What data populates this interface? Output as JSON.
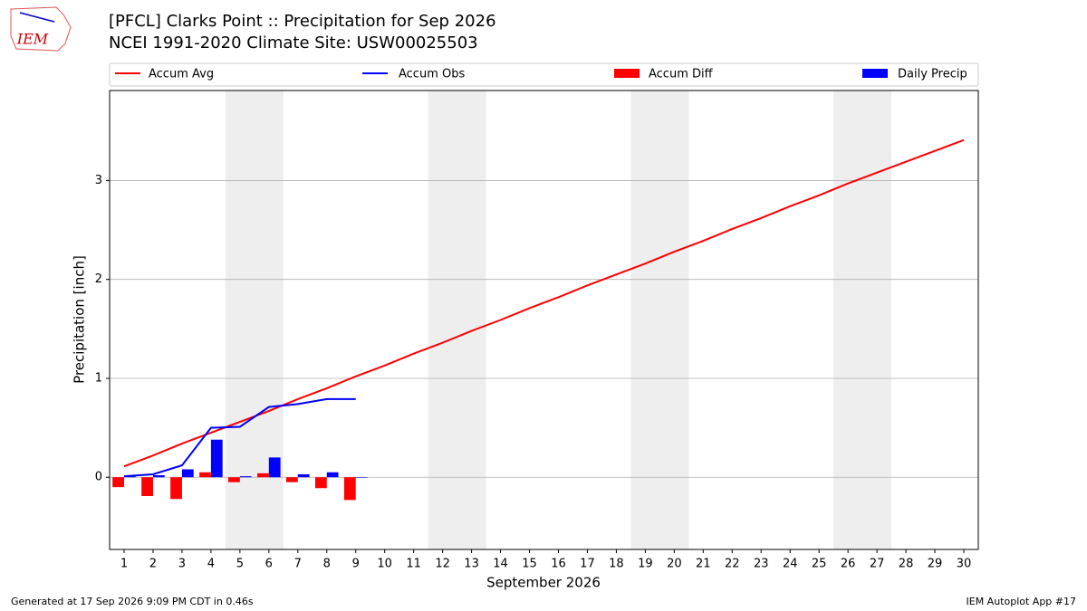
{
  "chart_data": {
    "type": "line",
    "title": "[PFCL] Clarks Point :: Precipitation for Sep 2026",
    "subtitle": "NCEI 1991-2020 Climate Site: USW00025503",
    "ylabel": "Precipitation [inch]",
    "xlabel": "September 2026",
    "footer_left": "Generated at 17 Sep 2026 9:09 PM CDT in 0.46s",
    "footer_right": "IEM Autoplot App #17",
    "logo": "IEM",
    "x": [
      1,
      2,
      3,
      4,
      5,
      6,
      7,
      8,
      9,
      10,
      11,
      12,
      13,
      14,
      15,
      16,
      17,
      18,
      19,
      20,
      21,
      22,
      23,
      24,
      25,
      26,
      27,
      28,
      29,
      30
    ],
    "xlim": [
      0.5,
      30.5
    ],
    "xticks": [
      1,
      2,
      3,
      4,
      5,
      6,
      7,
      8,
      9,
      10,
      11,
      12,
      13,
      14,
      15,
      16,
      17,
      18,
      19,
      20,
      21,
      22,
      23,
      24,
      25,
      26,
      27,
      28,
      29,
      30
    ],
    "ylim": [
      -0.73,
      3.91
    ],
    "yticks": [
      0,
      1,
      2,
      3
    ],
    "grid": true,
    "shaded_spans": [
      [
        4.5,
        6.5
      ],
      [
        11.5,
        13.5
      ],
      [
        18.5,
        20.5
      ],
      [
        25.5,
        27.5
      ]
    ],
    "series": [
      {
        "name": "Accum Avg",
        "kind": "line",
        "color": "#ff0000",
        "values": [
          0.11,
          0.22,
          0.34,
          0.45,
          0.56,
          0.67,
          0.79,
          0.9,
          1.02,
          1.13,
          1.25,
          1.36,
          1.48,
          1.59,
          1.71,
          1.82,
          1.94,
          2.05,
          2.16,
          2.28,
          2.39,
          2.51,
          2.62,
          2.74,
          2.85,
          2.97,
          3.08,
          3.19,
          3.3,
          3.41
        ]
      },
      {
        "name": "Accum Obs",
        "kind": "line",
        "color": "#0000ff",
        "values": [
          0.01,
          0.03,
          0.12,
          0.5,
          0.51,
          0.71,
          0.74,
          0.79,
          0.79,
          null,
          null,
          null,
          null,
          null,
          null,
          null,
          null,
          null,
          null,
          null,
          null,
          null,
          null,
          null,
          null,
          null,
          null,
          null,
          null,
          null
        ]
      },
      {
        "name": "Accum Diff",
        "kind": "bar",
        "color": "#ff0000",
        "values": [
          -0.1,
          -0.19,
          -0.22,
          0.05,
          -0.05,
          0.04,
          -0.05,
          -0.11,
          -0.23,
          null,
          null,
          null,
          null,
          null,
          null,
          null,
          null,
          null,
          null,
          null,
          null,
          null,
          null,
          null,
          null,
          null,
          null,
          null,
          null,
          null
        ]
      },
      {
        "name": "Daily Precip",
        "kind": "bar",
        "color": "#0000ff",
        "values": [
          0.01,
          0.02,
          0.08,
          0.38,
          0.01,
          0.2,
          0.03,
          0.05,
          0.0,
          null,
          null,
          null,
          null,
          null,
          null,
          null,
          null,
          null,
          null,
          null,
          null,
          null,
          null,
          null,
          null,
          null,
          null,
          null,
          null,
          null
        ]
      }
    ]
  }
}
